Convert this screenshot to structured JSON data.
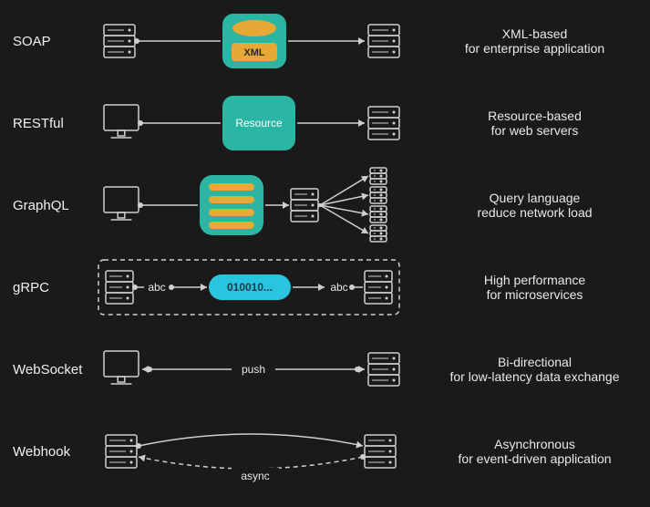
{
  "background_color": "#1a1a1a",
  "text_color": "#e8e8e8",
  "stroke_color": "#cfcfcf",
  "teal": "#2bb6a3",
  "cyan": "#2bc4e0",
  "orange": "#e8a836",
  "rows": [
    {
      "label": "SOAP",
      "desc1": "XML-based",
      "desc2": "for enterprise application",
      "payload_label": "XML",
      "type": "soap"
    },
    {
      "label": "RESTful",
      "desc1": "Resource-based",
      "desc2": "for web servers",
      "payload_label": "Resource",
      "type": "restful"
    },
    {
      "label": "GraphQL",
      "desc1": "Query language",
      "desc2": "reduce network load",
      "type": "graphql"
    },
    {
      "label": "gRPC",
      "desc1": "High performance",
      "desc2": "for microservices",
      "payload_label": "010010...",
      "side_label": "abc",
      "type": "grpc"
    },
    {
      "label": "WebSocket",
      "desc1": "Bi-directional",
      "desc2": "for low-latency data exchange",
      "mid_label": "push",
      "type": "websocket"
    },
    {
      "label": "Webhook",
      "desc1": "Asynchronous",
      "desc2": "for event-driven application",
      "mid_label": "async",
      "type": "webhook"
    }
  ]
}
